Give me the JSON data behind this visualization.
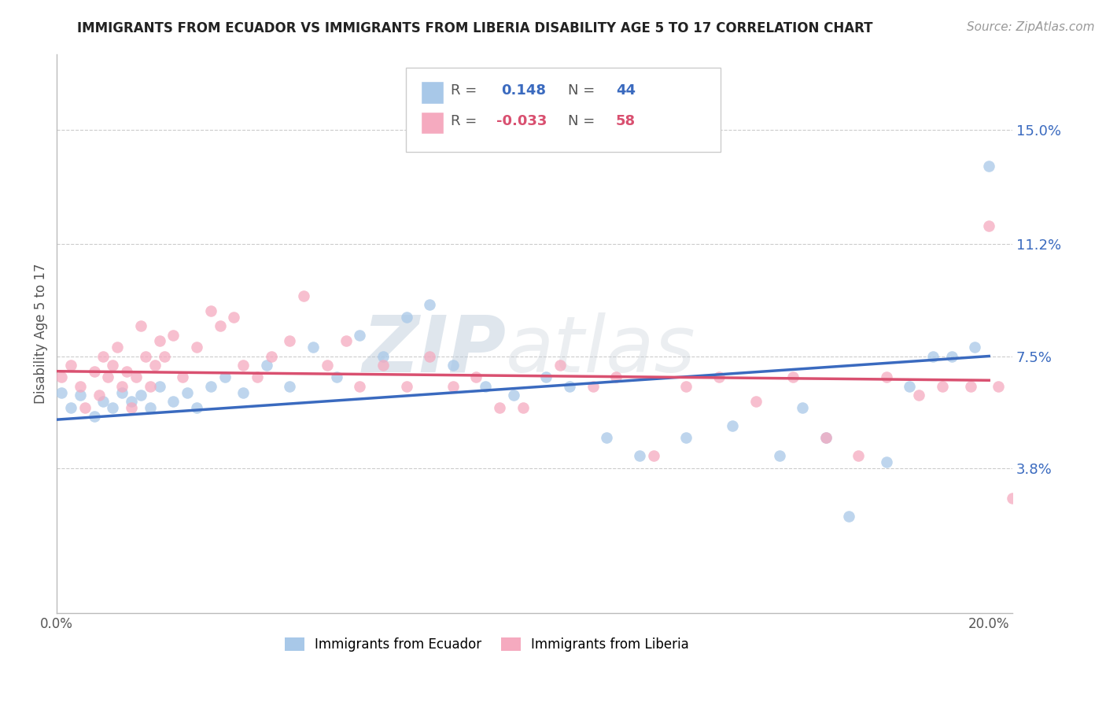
{
  "title": "IMMIGRANTS FROM ECUADOR VS IMMIGRANTS FROM LIBERIA DISABILITY AGE 5 TO 17 CORRELATION CHART",
  "source": "Source: ZipAtlas.com",
  "ylabel": "Disability Age 5 to 17",
  "xlim": [
    0.0,
    0.205
  ],
  "ylim": [
    -0.01,
    0.175
  ],
  "yticks": [
    0.038,
    0.075,
    0.112,
    0.15
  ],
  "ytick_labels": [
    "3.8%",
    "7.5%",
    "11.2%",
    "15.0%"
  ],
  "xticks": [
    0.0,
    0.05,
    0.1,
    0.15,
    0.2
  ],
  "xtick_labels": [
    "0.0%",
    "",
    "",
    "",
    "20.0%"
  ],
  "ecuador_color": "#a8c8e8",
  "liberia_color": "#f5aabf",
  "ecuador_R": 0.148,
  "ecuador_N": 44,
  "liberia_R": -0.033,
  "liberia_N": 58,
  "trend_blue": "#3a6abf",
  "trend_pink": "#d95070",
  "legend_color_blue": "#3a6abf",
  "legend_color_pink": "#d95070",
  "ecuador_x": [
    0.001,
    0.003,
    0.005,
    0.008,
    0.01,
    0.012,
    0.014,
    0.016,
    0.018,
    0.02,
    0.022,
    0.025,
    0.028,
    0.03,
    0.033,
    0.036,
    0.04,
    0.045,
    0.05,
    0.055,
    0.06,
    0.065,
    0.07,
    0.075,
    0.08,
    0.085,
    0.092,
    0.098,
    0.105,
    0.11,
    0.118,
    0.125,
    0.135,
    0.145,
    0.155,
    0.16,
    0.165,
    0.17,
    0.178,
    0.183,
    0.188,
    0.192,
    0.197,
    0.2
  ],
  "ecuador_y": [
    0.063,
    0.058,
    0.062,
    0.055,
    0.06,
    0.058,
    0.063,
    0.06,
    0.062,
    0.058,
    0.065,
    0.06,
    0.063,
    0.058,
    0.065,
    0.068,
    0.063,
    0.072,
    0.065,
    0.078,
    0.068,
    0.082,
    0.075,
    0.088,
    0.092,
    0.072,
    0.065,
    0.062,
    0.068,
    0.065,
    0.048,
    0.042,
    0.048,
    0.052,
    0.042,
    0.058,
    0.048,
    0.022,
    0.04,
    0.065,
    0.075,
    0.075,
    0.078,
    0.138
  ],
  "liberia_x": [
    0.001,
    0.003,
    0.005,
    0.006,
    0.008,
    0.009,
    0.01,
    0.011,
    0.012,
    0.013,
    0.014,
    0.015,
    0.016,
    0.017,
    0.018,
    0.019,
    0.02,
    0.021,
    0.022,
    0.023,
    0.025,
    0.027,
    0.03,
    0.033,
    0.035,
    0.038,
    0.04,
    0.043,
    0.046,
    0.05,
    0.053,
    0.058,
    0.062,
    0.065,
    0.07,
    0.075,
    0.08,
    0.085,
    0.09,
    0.095,
    0.1,
    0.108,
    0.115,
    0.12,
    0.128,
    0.135,
    0.142,
    0.15,
    0.158,
    0.165,
    0.172,
    0.178,
    0.185,
    0.19,
    0.196,
    0.2,
    0.202,
    0.205
  ],
  "liberia_y": [
    0.068,
    0.072,
    0.065,
    0.058,
    0.07,
    0.062,
    0.075,
    0.068,
    0.072,
    0.078,
    0.065,
    0.07,
    0.058,
    0.068,
    0.085,
    0.075,
    0.065,
    0.072,
    0.08,
    0.075,
    0.082,
    0.068,
    0.078,
    0.09,
    0.085,
    0.088,
    0.072,
    0.068,
    0.075,
    0.08,
    0.095,
    0.072,
    0.08,
    0.065,
    0.072,
    0.065,
    0.075,
    0.065,
    0.068,
    0.058,
    0.058,
    0.072,
    0.065,
    0.068,
    0.042,
    0.065,
    0.068,
    0.06,
    0.068,
    0.048,
    0.042,
    0.068,
    0.062,
    0.065,
    0.065,
    0.118,
    0.065,
    0.028
  ],
  "watermark_zip": "ZIP",
  "watermark_atlas": "atlas",
  "background_color": "#ffffff",
  "grid_color": "#cccccc",
  "title_color": "#222222",
  "axis_label_color": "#555555"
}
